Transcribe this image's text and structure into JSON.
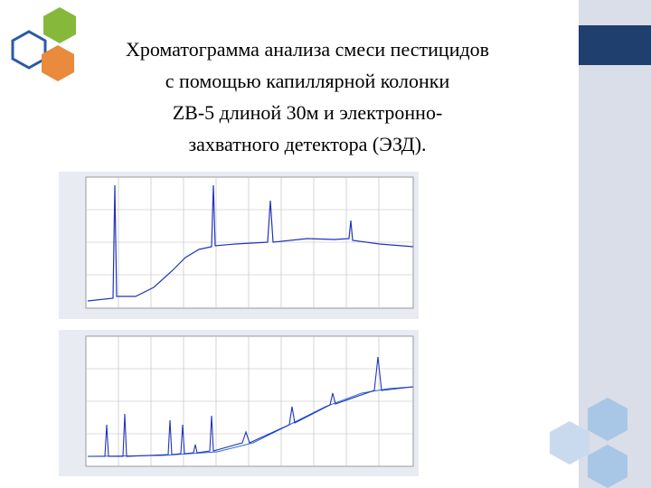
{
  "slide": {
    "title_lines": [
      "Хроматограмма анализа смеси пестицидов",
      "с помощью капиллярной колонки",
      "ZB-5 длиной 30м и электронно-",
      "захватного детектора (ЭЗД)."
    ]
  }
}
